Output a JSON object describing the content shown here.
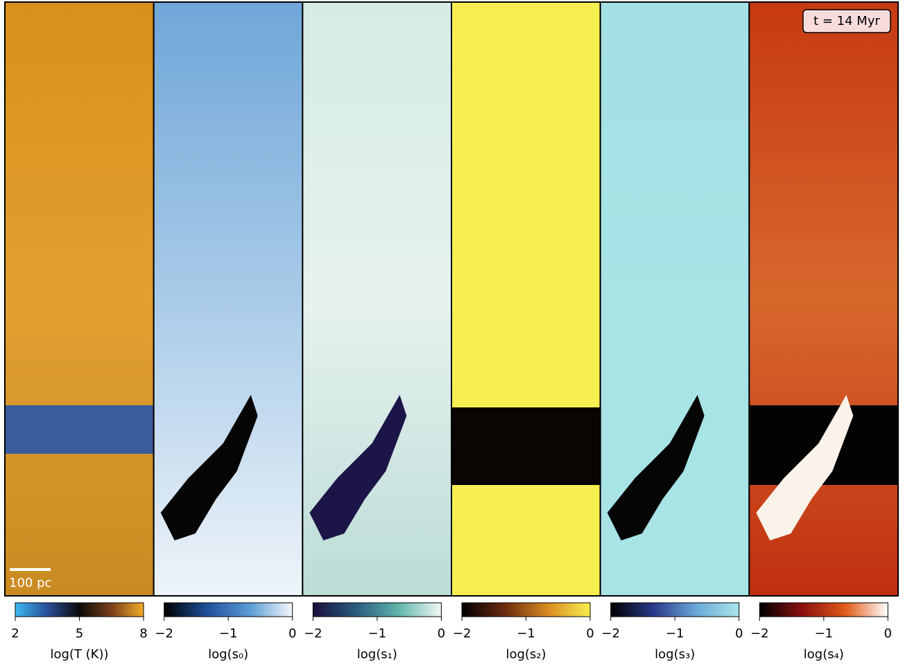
{
  "chart_data": [
    {
      "type": "heatmap",
      "colorbar_label": "log(T (K))",
      "clim": [
        2,
        8
      ],
      "cticks": [
        2,
        5,
        8
      ],
      "colormap": [
        "#3cb8f0",
        "#2a4f9a",
        "#0a0a0a",
        "#7b3f1a",
        "#f2ac2a"
      ],
      "annotation": "100 pc"
    },
    {
      "type": "heatmap",
      "colorbar_label": "log(s₀)",
      "clim": [
        -2,
        0
      ],
      "cticks": [
        {
          "value": -2,
          "label": "−2"
        },
        {
          "value": -1,
          "label": "−1"
        },
        0
      ],
      "colormap": [
        "#000000",
        "#1f4f9a",
        "#5a9bd5",
        "#f4f8fb"
      ]
    },
    {
      "type": "heatmap",
      "colorbar_label": "log(s₁)",
      "clim": [
        -2,
        0
      ],
      "cticks": [
        {
          "value": -2,
          "label": "−2"
        },
        {
          "value": -1,
          "label": "−1"
        },
        0
      ],
      "colormap": [
        "#1a0f3a",
        "#2a5a80",
        "#5fb5ab",
        "#f2f8f6"
      ]
    },
    {
      "type": "heatmap",
      "colorbar_label": "log(s₂)",
      "clim": [
        -2,
        0
      ],
      "cticks": [
        {
          "value": -2,
          "label": "−2"
        },
        {
          "value": -1,
          "label": "−1"
        },
        0
      ],
      "colormap": [
        "#000000",
        "#6b2a10",
        "#d88a20",
        "#f8f050"
      ]
    },
    {
      "type": "heatmap",
      "colorbar_label": "log(s₃)",
      "clim": [
        -2,
        0
      ],
      "cticks": [
        {
          "value": -2,
          "label": "−2"
        },
        {
          "value": -1,
          "label": "−1"
        },
        0
      ],
      "colormap": [
        "#000000",
        "#2a3a8a",
        "#6aa8d8",
        "#a8e6ea"
      ]
    },
    {
      "type": "heatmap",
      "colorbar_label": "log(s₄)",
      "clim": [
        -2,
        0
      ],
      "cticks": [
        {
          "value": -2,
          "label": "−2"
        },
        {
          "value": -1,
          "label": "−1"
        },
        0
      ],
      "colormap": [
        "#000000",
        "#8a1010",
        "#e05a18",
        "#ffffff"
      ],
      "annotation": "t = 14 Myr"
    }
  ]
}
